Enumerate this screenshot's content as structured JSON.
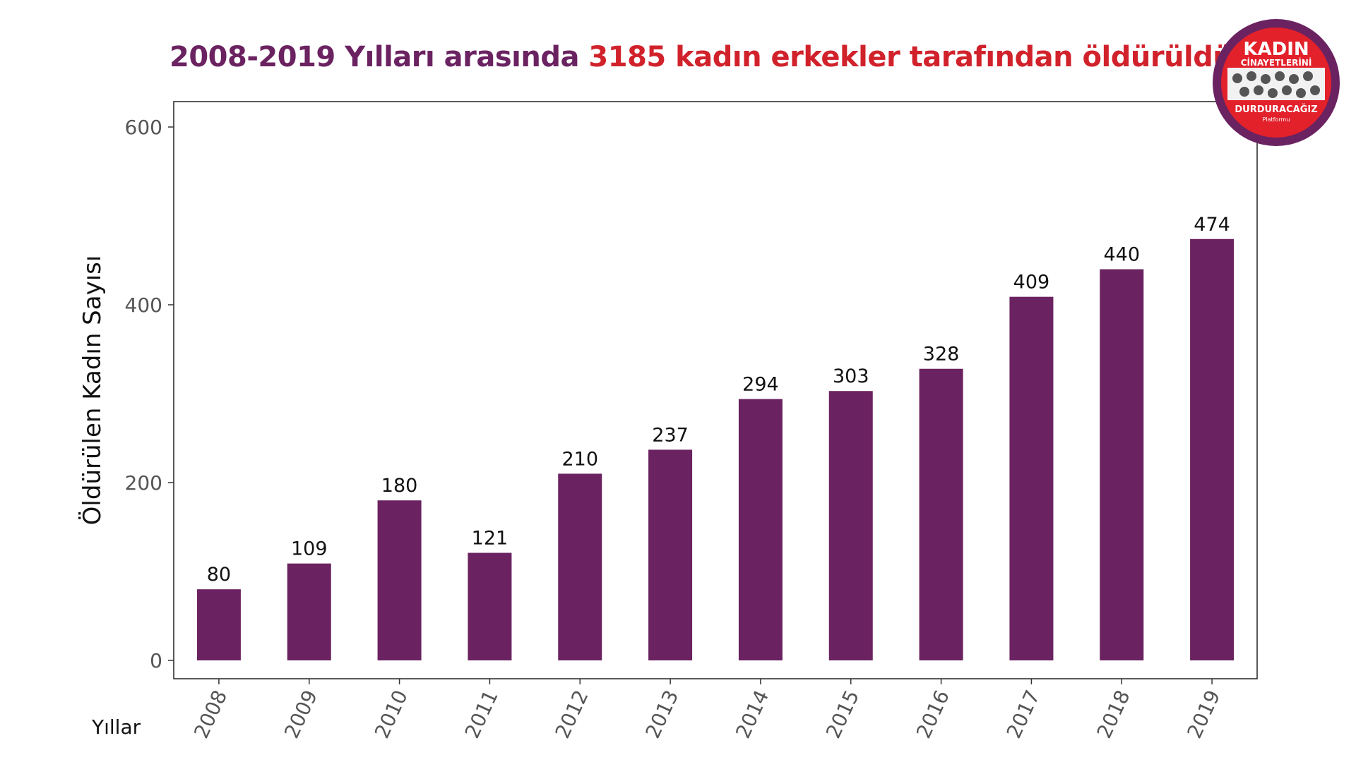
{
  "title": {
    "part1": "2008-2019 Yılları arasında",
    "part2": "3185 kadın erkekler tarafından öldürüldü"
  },
  "colors": {
    "bar": "#6b2261",
    "title_purple": "#6b2261",
    "title_red": "#d1222c",
    "logo_red": "#e2212b",
    "logo_purple": "#6b2261"
  },
  "logo": {
    "line1": "KADIN",
    "line2": "CİNAYETLERİNİ",
    "line3": "DURDURACAĞIZ",
    "line4": "Platformu"
  },
  "chart_data": {
    "type": "bar",
    "title": "2008-2019 Yılları arasında 3185 kadın erkekler tarafından öldürüldü",
    "xlabel": "Yıllar",
    "ylabel": "Öldürülen Kadın Sayısı",
    "ylim": [
      0,
      620
    ],
    "yticks": [
      0,
      200,
      400,
      600
    ],
    "grid": false,
    "categories": [
      "2008",
      "2009",
      "2010",
      "2011",
      "2012",
      "2013",
      "2014",
      "2015",
      "2016",
      "2017",
      "2018",
      "2019"
    ],
    "values": [
      80,
      109,
      180,
      121,
      210,
      237,
      294,
      303,
      328,
      409,
      440,
      474
    ]
  }
}
